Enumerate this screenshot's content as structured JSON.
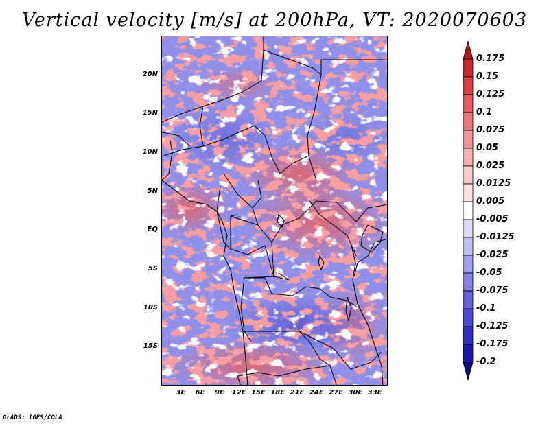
{
  "title": "Vertical velocity [m/s] at 200hPa, VT: 2020070603",
  "map": {
    "variable": "Vertical velocity",
    "units": "m/s",
    "level": "200hPa",
    "valid_time": "2020070603",
    "lon_range": [
      0,
      35
    ],
    "lat_range": [
      -20,
      25
    ],
    "y_tick_values": [
      20,
      15,
      10,
      5,
      0,
      -5,
      -10,
      -15
    ],
    "y_tick_labels": [
      "20N",
      "15N",
      "10N",
      "5N",
      "EQ",
      "5S",
      "10S",
      "15S"
    ],
    "x_tick_values": [
      3,
      6,
      9,
      12,
      15,
      18,
      21,
      24,
      27,
      30,
      33
    ],
    "x_tick_labels": [
      "3E",
      "6E",
      "9E",
      "12E",
      "15E",
      "18E",
      "21E",
      "24E",
      "27E",
      "30E",
      "33E"
    ]
  },
  "colorbar": {
    "labels": [
      "0.175",
      "0.15",
      "0.125",
      "0.1",
      "0.075",
      "0.05",
      "0.025",
      "0.0125",
      "0.005",
      "-0.005",
      "-0.0125",
      "-0.025",
      "-0.05",
      "-0.075",
      "-0.1",
      "-0.125",
      "-0.175",
      "-0.2"
    ],
    "colors": [
      "#b0161e",
      "#c92a30",
      "#d94348",
      "#e35c5f",
      "#ea7a79",
      "#f09793",
      "#f5b1ab",
      "#f9cbc5",
      "#fce3df",
      "#ffffff",
      "#dcdcf8",
      "#c0c0f2",
      "#a2a2ec",
      "#8484e4",
      "#6565da",
      "#4a4ace",
      "#3030c0",
      "#1818a8",
      "#0a0a90"
    ]
  },
  "credit": "GrADS: IGES/COLA"
}
